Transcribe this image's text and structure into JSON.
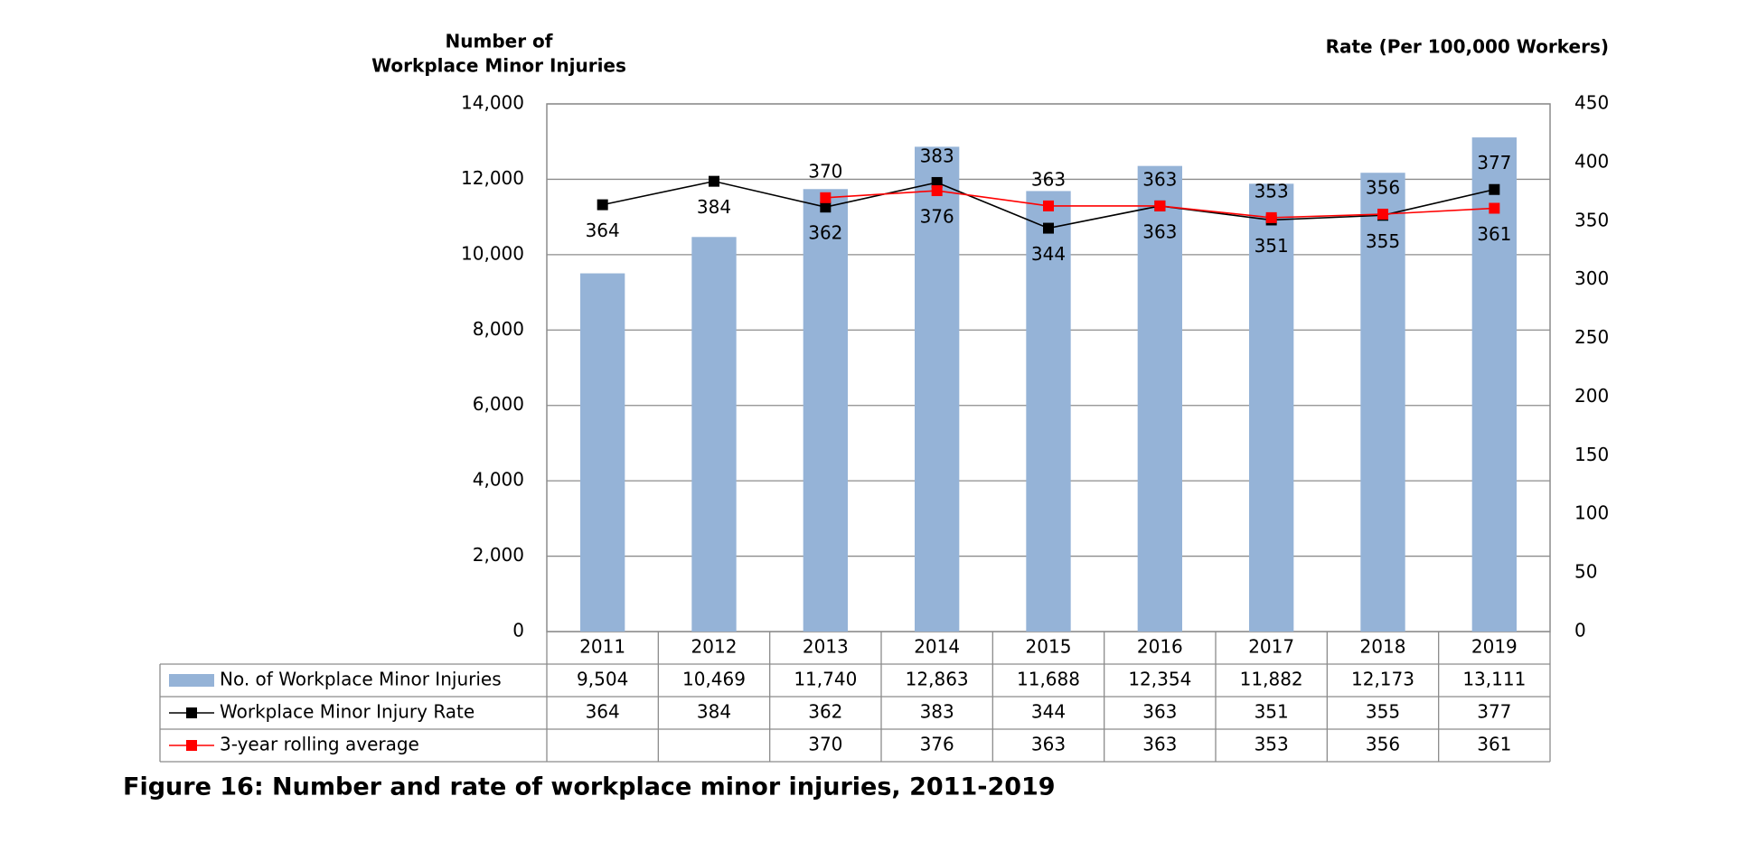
{
  "chart_data": {
    "type": "combo",
    "title": "Figure 16: Number and rate of workplace minor injuries, 2011-2019",
    "y_label": [
      "Number of",
      "Workplace Minor Injuries"
    ],
    "y2_label": "Rate (Per 100,000 Workers)",
    "categories": [
      "2011",
      "2012",
      "2013",
      "2014",
      "2015",
      "2016",
      "2017",
      "2018",
      "2019"
    ],
    "series": [
      {
        "name": "No. of Workplace Minor Injuries",
        "type": "bar",
        "color": "#95b3d7",
        "values": [
          9504,
          10469,
          11740,
          12863,
          11688,
          12354,
          11882,
          12173,
          13111
        ],
        "value_labels": [
          "9,504",
          "10,469",
          "11,740",
          "12,863",
          "11,688",
          "12,354",
          "11,882",
          "12,173",
          "13,111"
        ]
      },
      {
        "name": "Workplace Minor Injury Rate",
        "type": "line",
        "axis": "y2",
        "color": "#000000",
        "values": [
          364,
          384,
          362,
          383,
          344,
          363,
          351,
          355,
          377
        ]
      },
      {
        "name": "3-year rolling average",
        "type": "line",
        "axis": "y2",
        "color": "#ff0000",
        "values": [
          null,
          null,
          370,
          376,
          363,
          363,
          353,
          356,
          361
        ]
      }
    ],
    "ylim": [
      0,
      14000
    ],
    "yticks": [
      0,
      {
        "value": 2000,
        "label": "2,000"
      },
      {
        "value": 4000,
        "label": "4,000"
      },
      {
        "value": 6000,
        "label": "6,000"
      },
      {
        "value": 8000,
        "label": "8,000"
      },
      {
        "value": 10000,
        "label": "10,000"
      },
      {
        "value": 12000,
        "label": "12,000"
      },
      {
        "value": 14000,
        "label": "14,000"
      }
    ],
    "y2lim": [
      0,
      450
    ],
    "y2ticks": [
      0,
      50,
      100,
      150,
      200,
      250,
      300,
      350,
      400,
      450
    ],
    "grid": true,
    "data_table": true
  }
}
